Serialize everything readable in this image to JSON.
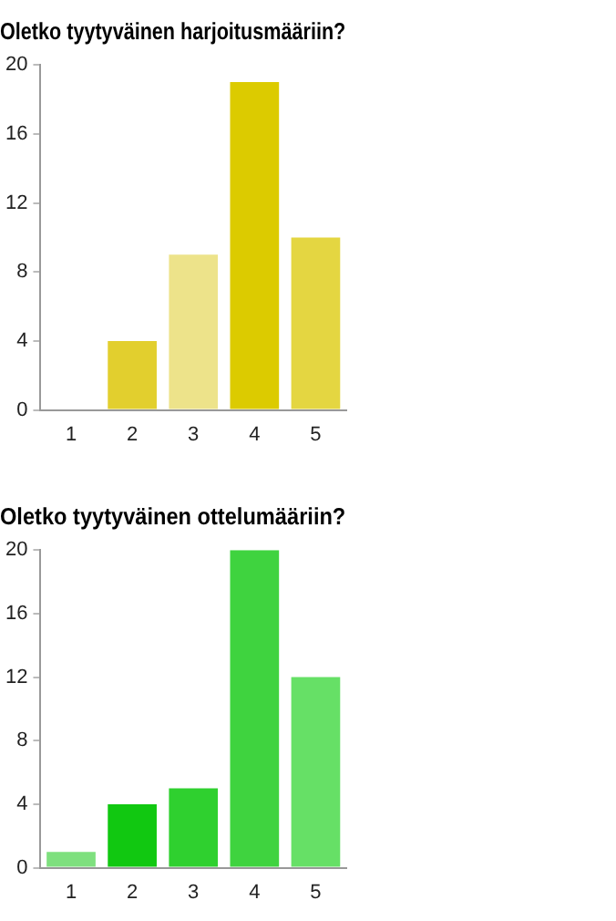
{
  "chart_data": [
    {
      "type": "bar",
      "title": "Oletko tyytyväinen harjoitusmääriin?",
      "categories": [
        "1",
        "2",
        "3",
        "4",
        "5"
      ],
      "values": [
        0,
        4,
        9,
        19,
        10
      ],
      "colors": [
        "#e2cf2e",
        "#e2cf2e",
        "#ede38a",
        "#dccb00",
        "#e4d641"
      ],
      "ylim": [
        0,
        20
      ],
      "yticks": [
        0,
        4,
        8,
        12,
        16,
        20
      ],
      "grid": false,
      "legend": false
    },
    {
      "type": "bar",
      "title": "Oletko tyytyväinen ottelumääriin?",
      "categories": [
        "1",
        "2",
        "3",
        "4",
        "5"
      ],
      "values": [
        1,
        4,
        5,
        20,
        12
      ],
      "colors": [
        "#7ee07e",
        "#11c811",
        "#2fd02f",
        "#3fd33f",
        "#66e066"
      ],
      "ylim": [
        0,
        20
      ],
      "yticks": [
        0,
        4,
        8,
        12,
        16,
        20
      ],
      "grid": false,
      "legend": false
    }
  ]
}
